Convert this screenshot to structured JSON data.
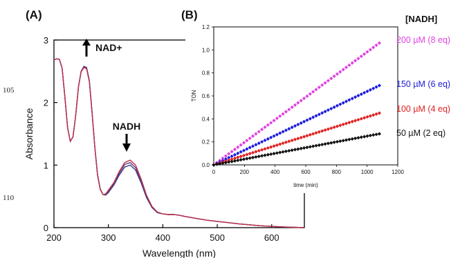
{
  "line_numbers": [
    "105",
    "110"
  ],
  "panel_a": {
    "label": "(A)",
    "xlabel": "Wavelength (nm)",
    "ylabel": "Absorbance",
    "annotation_up": "NAD+",
    "annotation_down": "NADH"
  },
  "panel_b": {
    "label": "(B)",
    "xlabel": "time (min)",
    "ylabel": "TON",
    "legend_title": "[NADH]"
  },
  "chart_data": [
    {
      "type": "line",
      "panel": "A",
      "xlabel": "Wavelength (nm)",
      "ylabel": "Absorbance",
      "xlim": [
        200,
        660
      ],
      "ylim": [
        0,
        3
      ],
      "xticks": [
        200,
        300,
        400,
        500,
        600
      ],
      "yticks": [
        0,
        1,
        2,
        3
      ],
      "grid": false,
      "line_color": "#c0304a",
      "x": [
        200,
        205,
        210,
        215,
        220,
        225,
        230,
        235,
        240,
        245,
        250,
        255,
        260,
        265,
        270,
        275,
        280,
        285,
        290,
        295,
        300,
        310,
        320,
        330,
        340,
        350,
        360,
        370,
        380,
        390,
        400,
        410,
        420,
        430,
        440,
        460,
        480,
        500,
        520,
        540,
        560,
        580,
        600,
        620,
        640,
        660
      ],
      "series": [
        {
          "values": [
            2.68,
            2.7,
            2.69,
            2.55,
            2.1,
            1.6,
            1.38,
            1.45,
            1.8,
            2.25,
            2.5,
            2.58,
            2.56,
            2.35,
            1.85,
            1.3,
            0.85,
            0.62,
            0.53,
            0.52,
            0.56,
            0.68,
            0.84,
            0.97,
            1.0,
            0.92,
            0.72,
            0.48,
            0.32,
            0.24,
            0.22,
            0.21,
            0.21,
            0.2,
            0.18,
            0.15,
            0.12,
            0.1,
            0.08,
            0.06,
            0.045,
            0.03,
            0.02,
            0.012,
            0.005,
            0.0
          ]
        },
        {
          "values": [
            2.68,
            2.7,
            2.69,
            2.55,
            2.1,
            1.6,
            1.38,
            1.45,
            1.8,
            2.25,
            2.5,
            2.57,
            2.55,
            2.34,
            1.84,
            1.29,
            0.84,
            0.61,
            0.53,
            0.53,
            0.58,
            0.7,
            0.87,
            1.01,
            1.04,
            0.96,
            0.75,
            0.5,
            0.33,
            0.24,
            0.22,
            0.21,
            0.21,
            0.2,
            0.18,
            0.15,
            0.12,
            0.1,
            0.08,
            0.06,
            0.045,
            0.03,
            0.02,
            0.012,
            0.005,
            0.0
          ]
        },
        {
          "values": [
            2.68,
            2.7,
            2.69,
            2.55,
            2.1,
            1.6,
            1.38,
            1.45,
            1.8,
            2.25,
            2.49,
            2.56,
            2.54,
            2.33,
            1.83,
            1.29,
            0.84,
            0.61,
            0.53,
            0.54,
            0.6,
            0.72,
            0.9,
            1.04,
            1.08,
            1.0,
            0.78,
            0.52,
            0.34,
            0.25,
            0.22,
            0.21,
            0.21,
            0.2,
            0.18,
            0.15,
            0.12,
            0.1,
            0.08,
            0.06,
            0.045,
            0.03,
            0.02,
            0.012,
            0.005,
            0.0
          ]
        }
      ]
    },
    {
      "type": "scatter",
      "panel": "B",
      "xlabel": "time (min)",
      "ylabel": "TON",
      "xlim": [
        0,
        1200
      ],
      "ylim": [
        0,
        1.2
      ],
      "xticks": [
        0,
        200,
        400,
        600,
        800,
        1000,
        1200
      ],
      "yticks": [
        0.0,
        0.2,
        0.4,
        0.6,
        0.8,
        1.0,
        1.2
      ],
      "grid": false,
      "legend_title": "[NADH]",
      "legend_placement": "right",
      "series": [
        {
          "name": "200 µM (8 eq)",
          "color": "#e040e0",
          "x": [
            0,
            1080
          ],
          "values": [
            0.0,
            1.06
          ]
        },
        {
          "name": "150 µM (6 eq)",
          "color": "#1a1adc",
          "x": [
            0,
            1080
          ],
          "values": [
            0.0,
            0.69
          ]
        },
        {
          "name": "100 µM (4 eq)",
          "color": "#e02020",
          "x": [
            0,
            1080
          ],
          "values": [
            0.0,
            0.45
          ]
        },
        {
          "name": "50 µM (2 eq)",
          "color": "#111111",
          "x": [
            0,
            1080
          ],
          "values": [
            0.0,
            0.27
          ]
        }
      ]
    }
  ]
}
